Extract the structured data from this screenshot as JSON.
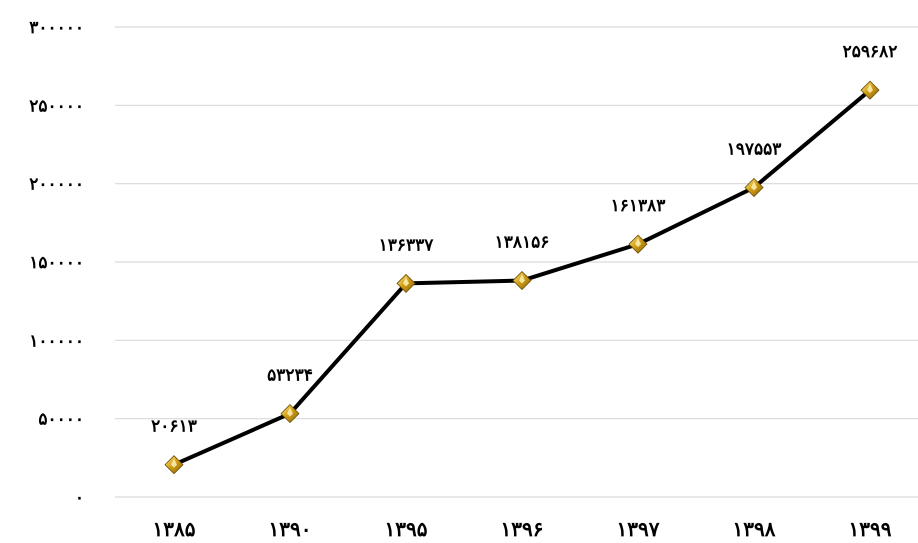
{
  "chart_data": {
    "type": "line",
    "title": "",
    "xlabel": "",
    "ylabel": "",
    "categories": [
      "۱۳۸۵",
      "۱۳۹۰",
      "۱۳۹۵",
      "۱۳۹۶",
      "۱۳۹۷",
      "۱۳۹۸",
      "۱۳۹۹"
    ],
    "values": [
      20613,
      53234,
      136337,
      138156,
      161383,
      197553,
      259682
    ],
    "data_labels": [
      "۲۰۶۱۳",
      "۵۳۲۳۴",
      "۱۳۶۳۳۷",
      "۱۳۸۱۵۶",
      "۱۶۱۳۸۳",
      "۱۹۷۵۵۳",
      "۲۵۹۶۸۲"
    ],
    "ylim": [
      0,
      300000
    ],
    "yticks": [
      0,
      50000,
      100000,
      150000,
      200000,
      250000,
      300000
    ],
    "ytick_labels": [
      "۰",
      "۵۰۰۰۰",
      "۱۰۰۰۰۰",
      "۱۵۰۰۰۰",
      "۲۰۰۰۰۰",
      "۲۵۰۰۰۰",
      "۳۰۰۰۰۰"
    ],
    "grid": true,
    "line_color": "#000000",
    "marker": "diamond",
    "marker_color": "#d4a017",
    "grid_color": "#d9d9d9"
  }
}
